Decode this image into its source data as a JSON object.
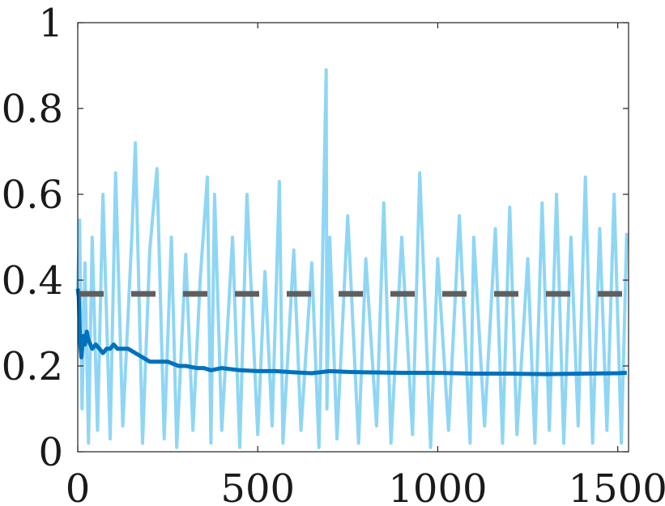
{
  "chart_data": {
    "type": "line",
    "title": "",
    "xlabel": "",
    "ylabel": "",
    "xlim": [
      0,
      1530
    ],
    "ylim": [
      0,
      1
    ],
    "xticks": [
      0,
      500,
      1000,
      1500
    ],
    "yticks": [
      0,
      0.2,
      0.4,
      0.6,
      0.8,
      1
    ],
    "xtick_labels": [
      "0",
      "500",
      "1000",
      "1500"
    ],
    "ytick_labels": [
      "0",
      "0.2",
      "0.4",
      "0.6",
      "0.8",
      "1"
    ],
    "grid": false,
    "legend": "none",
    "series": [
      {
        "style": "solid-thin",
        "color": "#8FD6F4",
        "x": [
          0,
          5,
          12,
          20,
          30,
          40,
          55,
          70,
          90,
          105,
          125,
          150,
          160,
          180,
          200,
          220,
          240,
          260,
          275,
          300,
          320,
          340,
          360,
          370,
          380,
          400,
          430,
          450,
          470,
          500,
          520,
          540,
          560,
          570,
          600,
          620,
          650,
          670,
          690,
          692,
          700,
          720,
          750,
          780,
          800,
          830,
          850,
          870,
          900,
          930,
          950,
          980,
          1000,
          1030,
          1060,
          1090,
          1100,
          1130,
          1160,
          1180,
          1200,
          1220,
          1250,
          1270,
          1290,
          1310,
          1330,
          1350,
          1370,
          1390,
          1410,
          1430,
          1450,
          1470,
          1490,
          1510,
          1525
        ],
        "values": [
          0.38,
          0.54,
          0.1,
          0.44,
          0.02,
          0.5,
          0.05,
          0.6,
          0.03,
          0.65,
          0.06,
          0.5,
          0.72,
          0.02,
          0.47,
          0.66,
          0.03,
          0.5,
          0.01,
          0.46,
          0.05,
          0.4,
          0.64,
          0.02,
          0.6,
          0.05,
          0.5,
          0.01,
          0.6,
          0.04,
          0.42,
          0.06,
          0.63,
          0.02,
          0.47,
          0.05,
          0.44,
          0.01,
          0.89,
          0.1,
          0.5,
          0.03,
          0.55,
          0.02,
          0.45,
          0.06,
          0.58,
          0.02,
          0.5,
          0.04,
          0.65,
          0.01,
          0.45,
          0.05,
          0.55,
          0.02,
          0.5,
          0.06,
          0.52,
          0.02,
          0.57,
          0.04,
          0.45,
          0.02,
          0.58,
          0.05,
          0.6,
          0.02,
          0.5,
          0.06,
          0.64,
          0.02,
          0.52,
          0.05,
          0.6,
          0.02,
          0.51
        ]
      },
      {
        "style": "solid-thick",
        "color": "#0071BD",
        "x": [
          0,
          3,
          6,
          10,
          15,
          20,
          25,
          30,
          40,
          50,
          60,
          70,
          80,
          90,
          100,
          110,
          120,
          140,
          160,
          180,
          200,
          220,
          250,
          280,
          300,
          330,
          350,
          370,
          400,
          450,
          500,
          550,
          600,
          650,
          700,
          750,
          800,
          900,
          1000,
          1100,
          1200,
          1300,
          1400,
          1500,
          1525
        ],
        "values": [
          0.38,
          0.36,
          0.26,
          0.22,
          0.27,
          0.25,
          0.28,
          0.26,
          0.24,
          0.25,
          0.24,
          0.23,
          0.24,
          0.24,
          0.25,
          0.24,
          0.24,
          0.24,
          0.23,
          0.22,
          0.21,
          0.21,
          0.21,
          0.2,
          0.2,
          0.195,
          0.195,
          0.19,
          0.195,
          0.19,
          0.188,
          0.188,
          0.185,
          0.183,
          0.188,
          0.186,
          0.185,
          0.184,
          0.184,
          0.182,
          0.182,
          0.181,
          0.182,
          0.183,
          0.184
        ]
      },
      {
        "style": "dashed",
        "color": "#5F5F5F",
        "x": [
          0,
          1525
        ],
        "values": [
          0.368,
          0.368
        ]
      }
    ]
  }
}
